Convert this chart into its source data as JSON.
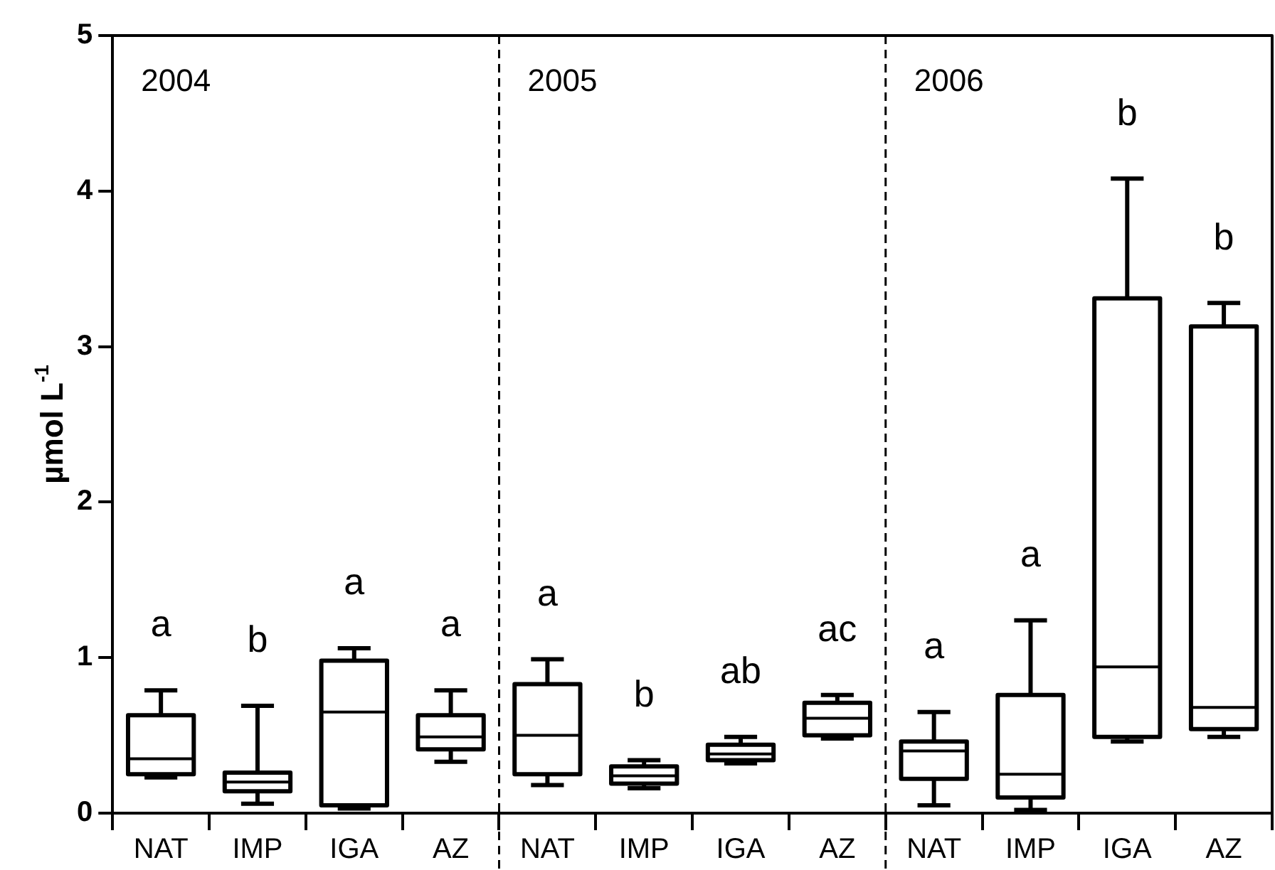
{
  "chart_data": {
    "type": "box",
    "ylabel": "µmol L$^{-1}$",
    "categories": [
      "NAT",
      "IMP",
      "IGA",
      "AZ",
      "NAT",
      "IMP",
      "IGA",
      "AZ",
      "NAT",
      "IMP",
      "IGA",
      "AZ"
    ],
    "boxes": [
      {
        "low": 0.23,
        "q1": 0.25,
        "median": 0.35,
        "q3": 0.63,
        "high": 0.79
      },
      {
        "low": 0.06,
        "q1": 0.14,
        "median": 0.2,
        "q3": 0.26,
        "high": 0.69
      },
      {
        "low": 0.03,
        "q1": 0.05,
        "median": 0.65,
        "q3": 0.98,
        "high": 1.06
      },
      {
        "low": 0.33,
        "q1": 0.41,
        "median": 0.49,
        "q3": 0.63,
        "high": 0.79
      },
      {
        "low": 0.18,
        "q1": 0.25,
        "median": 0.5,
        "q3": 0.83,
        "high": 0.99
      },
      {
        "low": 0.16,
        "q1": 0.19,
        "median": 0.24,
        "q3": 0.3,
        "high": 0.34
      },
      {
        "low": 0.32,
        "q1": 0.34,
        "median": 0.38,
        "q3": 0.44,
        "high": 0.49
      },
      {
        "low": 0.48,
        "q1": 0.5,
        "median": 0.61,
        "q3": 0.71,
        "high": 0.76
      },
      {
        "low": 0.05,
        "q1": 0.22,
        "median": 0.4,
        "q3": 0.46,
        "high": 0.65
      },
      {
        "low": 0.02,
        "q1": 0.1,
        "median": 0.25,
        "q3": 0.76,
        "high": 1.24
      },
      {
        "low": 0.46,
        "q1": 0.49,
        "median": 0.94,
        "q3": 3.31,
        "high": 4.08
      },
      {
        "low": 0.49,
        "q1": 0.54,
        "median": 0.68,
        "q3": 3.13,
        "high": 3.28
      }
    ],
    "value_labels": [
      "a",
      "b",
      "a",
      "a",
      "a",
      "b",
      "ab",
      "ac",
      "a",
      "a",
      "b",
      "b"
    ],
    "color": "#000000",
    "ylim": [
      0,
      5
    ],
    "yticks": [
      0,
      1,
      2,
      3,
      4,
      5
    ],
    "annotations": [
      "2004",
      "2005",
      "2006"
    ],
    "grid": false,
    "legend": false
  }
}
